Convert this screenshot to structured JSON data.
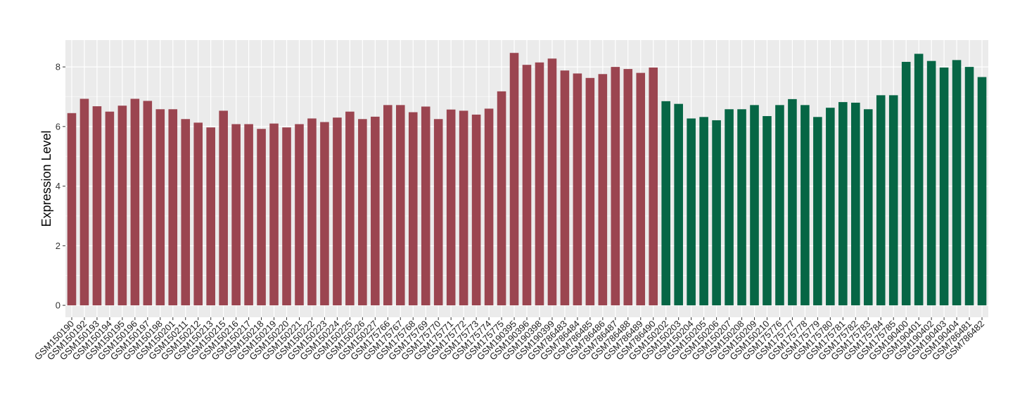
{
  "chart_data": {
    "type": "bar",
    "title": "",
    "xlabel": "",
    "ylabel": "Expression Level",
    "ylim": [
      -0.4,
      8.9
    ],
    "yticks": [
      0,
      2,
      4,
      6,
      8
    ],
    "grid": true,
    "background": "#EBEBEB",
    "gridline_color": "#FFFFFF",
    "group_colors": [
      "#9B4550",
      "#066645"
    ],
    "categories": [
      "GSM150190",
      "GSM150192",
      "GSM150193",
      "GSM150194",
      "GSM150195",
      "GSM150196",
      "GSM150197",
      "GSM150198",
      "GSM150201",
      "GSM150211",
      "GSM150212",
      "GSM150213",
      "GSM150215",
      "GSM150216",
      "GSM150217",
      "GSM150218",
      "GSM150219",
      "GSM150220",
      "GSM150221",
      "GSM150222",
      "GSM150223",
      "GSM150224",
      "GSM150225",
      "GSM150226",
      "GSM150227",
      "GSM175766",
      "GSM175767",
      "GSM175768",
      "GSM175769",
      "GSM175770",
      "GSM175771",
      "GSM175772",
      "GSM175773",
      "GSM175774",
      "GSM175775",
      "GSM190395",
      "GSM190396",
      "GSM190398",
      "GSM190399",
      "GSM786483",
      "GSM786484",
      "GSM786485",
      "GSM786486",
      "GSM786487",
      "GSM786488",
      "GSM786489",
      "GSM786490",
      "GSM150202",
      "GSM150203",
      "GSM150204",
      "GSM150205",
      "GSM150206",
      "GSM150207",
      "GSM150208",
      "GSM150209",
      "GSM150210",
      "GSM175776",
      "GSM175777",
      "GSM175778",
      "GSM175779",
      "GSM175780",
      "GSM175781",
      "GSM175782",
      "GSM175783",
      "GSM175784",
      "GSM175785",
      "GSM190400",
      "GSM190401",
      "GSM190402",
      "GSM190403",
      "GSM190404",
      "GSM786481",
      "GSM786482"
    ],
    "values": [
      6.45,
      6.93,
      6.68,
      6.5,
      6.7,
      6.93,
      6.86,
      6.58,
      6.58,
      6.25,
      6.13,
      5.97,
      6.53,
      6.08,
      6.08,
      5.92,
      6.1,
      5.97,
      6.08,
      6.27,
      6.15,
      6.3,
      6.5,
      6.25,
      6.33,
      6.72,
      6.72,
      6.48,
      6.67,
      6.25,
      6.57,
      6.53,
      6.4,
      6.6,
      7.18,
      8.47,
      8.07,
      8.15,
      8.28,
      7.88,
      7.78,
      7.63,
      7.76,
      8.0,
      7.93,
      7.8,
      7.98,
      6.85,
      6.76,
      6.27,
      6.32,
      6.21,
      6.58,
      6.58,
      6.72,
      6.35,
      6.72,
      6.92,
      6.72,
      6.32,
      6.63,
      6.82,
      6.8,
      6.58,
      7.05,
      7.05,
      8.17,
      8.44,
      8.2,
      7.98,
      8.23,
      8.0,
      7.66
    ],
    "groups": [
      0,
      0,
      0,
      0,
      0,
      0,
      0,
      0,
      0,
      0,
      0,
      0,
      0,
      0,
      0,
      0,
      0,
      0,
      0,
      0,
      0,
      0,
      0,
      0,
      0,
      0,
      0,
      0,
      0,
      0,
      0,
      0,
      0,
      0,
      0,
      0,
      0,
      0,
      0,
      0,
      0,
      0,
      0,
      0,
      0,
      0,
      0,
      1,
      1,
      1,
      1,
      1,
      1,
      1,
      1,
      1,
      1,
      1,
      1,
      1,
      1,
      1,
      1,
      1,
      1,
      1,
      1,
      1,
      1,
      1,
      1,
      1,
      1
    ]
  }
}
